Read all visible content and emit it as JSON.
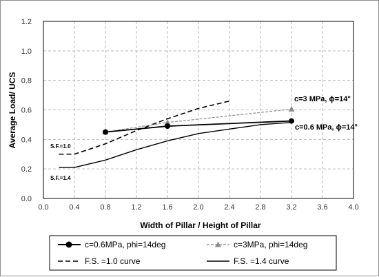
{
  "chart_data": {
    "type": "line",
    "title": "",
    "xlabel": "Width of Pillar / Height of Pillar",
    "ylabel": "Average Load/ UCS",
    "xlim": [
      0.0,
      4.0
    ],
    "ylim": [
      0.0,
      1.2
    ],
    "x_ticks": [
      "0.0",
      "0.4",
      "0.8",
      "1.2",
      "1.6",
      "2.0",
      "2.4",
      "2.8",
      "3.2",
      "3.6",
      "4.0"
    ],
    "y_ticks": [
      "0.0",
      "0.2",
      "0.4",
      "0.6",
      "0.8",
      "1.0",
      "1.2"
    ],
    "grid": true,
    "legend_position": "bottom",
    "series": [
      {
        "name": "c=0.6MPa, phi=14deg",
        "style": "solid-circle-marker",
        "color": "#000000",
        "x": [
          0.8,
          1.6,
          3.2
        ],
        "y": [
          0.45,
          0.49,
          0.525
        ]
      },
      {
        "name": "c=3MPa, phi=14deg",
        "style": "dashed-triangle-marker",
        "color": "#8c8c8c",
        "x": [
          0.8,
          1.6,
          3.2
        ],
        "y": [
          0.45,
          0.515,
          0.605
        ]
      },
      {
        "name": "F.S. =1.0 curve",
        "style": "dashed",
        "color": "#000000",
        "x": [
          0.2,
          0.4,
          0.8,
          1.2,
          1.6,
          2.0,
          2.4
        ],
        "y": [
          0.3,
          0.3,
          0.37,
          0.46,
          0.54,
          0.61,
          0.66
        ]
      },
      {
        "name": "F.S. =1.4 curve",
        "style": "solid",
        "color": "#000000",
        "x": [
          0.2,
          0.4,
          0.8,
          1.2,
          1.6,
          2.0,
          2.4,
          2.8,
          3.2
        ],
        "y": [
          0.21,
          0.21,
          0.26,
          0.33,
          0.39,
          0.44,
          0.47,
          0.5,
          0.515
        ]
      }
    ],
    "annotations": {
      "c3": "c=3 MPa, ϕ=14°",
      "c06": "c=0.6 MPa, ϕ=14°",
      "sf10": "S.F.=1.0",
      "sf14": "S.F.=1.4"
    }
  }
}
